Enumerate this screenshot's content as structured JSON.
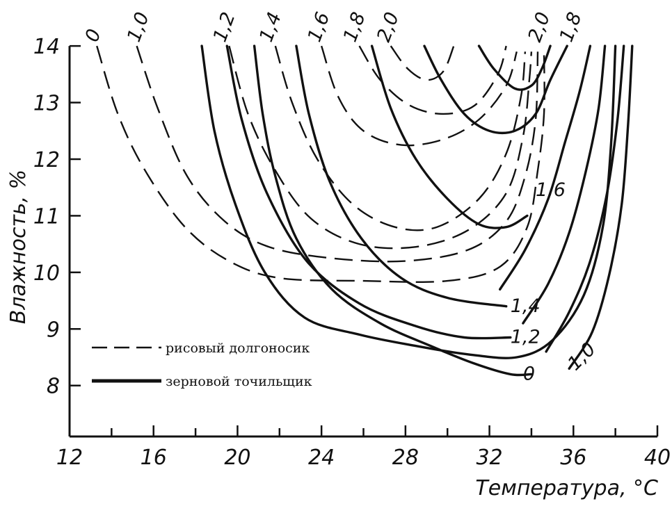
{
  "chart_data": {
    "type": "line",
    "title": "",
    "xlabel": "Температура, °С",
    "ylabel": "Влажность, %",
    "xlim": [
      12,
      40
    ],
    "ylim": [
      7.1,
      14.1
    ],
    "xticks": [
      "12",
      "16",
      "20",
      "24",
      "28",
      "32",
      "36",
      "40"
    ],
    "yticks": [
      "8",
      "9",
      "10",
      "11",
      "12",
      "13",
      "14"
    ],
    "legend": {
      "position": "bottom-left",
      "entries": [
        {
          "style": "dashed",
          "label": "рисовый долгоносик"
        },
        {
          "style": "solid",
          "label": "зерновой точильщик"
        }
      ]
    },
    "series": [
      {
        "group": "рисовый долгоносик",
        "style": "dashed",
        "label": "0",
        "points": [
          [
            13.3,
            14.0
          ],
          [
            14.3,
            12.8
          ],
          [
            15.6,
            11.8
          ],
          [
            17.5,
            10.8
          ],
          [
            19.6,
            10.2
          ],
          [
            22,
            9.9
          ],
          [
            26,
            9.85
          ],
          [
            30,
            9.85
          ],
          [
            32.5,
            10.1
          ],
          [
            33.8,
            10.8
          ],
          [
            34.3,
            11.8
          ],
          [
            34.6,
            12.8
          ],
          [
            34.6,
            13.9
          ]
        ]
      },
      {
        "group": "рисовый долгоносик",
        "style": "dashed",
        "label": "1,0",
        "points": [
          [
            15.2,
            14.0
          ],
          [
            16.2,
            12.9
          ],
          [
            17.6,
            11.7
          ],
          [
            19.4,
            10.9
          ],
          [
            21.5,
            10.45
          ],
          [
            24.5,
            10.25
          ],
          [
            28,
            10.2
          ],
          [
            31,
            10.4
          ],
          [
            32.8,
            10.9
          ],
          [
            33.7,
            11.7
          ],
          [
            34.2,
            12.7
          ],
          [
            34.3,
            13.9
          ]
        ]
      },
      {
        "group": "рисовый долгоносик",
        "style": "dashed",
        "label": "1,2",
        "points": [
          [
            19.6,
            14.0
          ],
          [
            20.5,
            12.8
          ],
          [
            21.8,
            11.8
          ],
          [
            23.5,
            10.95
          ],
          [
            25.8,
            10.5
          ],
          [
            28.5,
            10.45
          ],
          [
            31,
            10.75
          ],
          [
            32.8,
            11.4
          ],
          [
            33.6,
            12.4
          ],
          [
            33.9,
            13.4
          ],
          [
            34,
            13.9
          ]
        ]
      },
      {
        "group": "рисовый долгоносик",
        "style": "dashed",
        "label": "1,4",
        "points": [
          [
            21.8,
            14.0
          ],
          [
            22.6,
            13.0
          ],
          [
            23.8,
            12.0
          ],
          [
            25.5,
            11.2
          ],
          [
            27.5,
            10.8
          ],
          [
            29.5,
            10.8
          ],
          [
            31.5,
            11.3
          ],
          [
            32.8,
            12.1
          ],
          [
            33.5,
            13.1
          ],
          [
            33.7,
            13.9
          ]
        ]
      },
      {
        "group": "рисовый долгоносик",
        "style": "dashed",
        "label": "1,6",
        "points": [
          [
            24.0,
            14.0
          ],
          [
            24.8,
            13.1
          ],
          [
            26,
            12.5
          ],
          [
            27.8,
            12.25
          ],
          [
            29.8,
            12.35
          ],
          [
            31.5,
            12.7
          ],
          [
            32.8,
            13.3
          ],
          [
            33.3,
            13.9
          ]
        ]
      },
      {
        "group": "рисовый долгоносик",
        "style": "dashed",
        "label": "1,8",
        "points": [
          [
            25.8,
            14.0
          ],
          [
            26.8,
            13.4
          ],
          [
            28.2,
            12.95
          ],
          [
            29.8,
            12.8
          ],
          [
            31.3,
            12.95
          ],
          [
            32.4,
            13.5
          ],
          [
            32.8,
            14.0
          ]
        ]
      },
      {
        "group": "рисовый долгоносик",
        "style": "dashed",
        "label": "2,0",
        "points": [
          [
            27.3,
            14.0
          ],
          [
            28.1,
            13.6
          ],
          [
            29,
            13.4
          ],
          [
            29.8,
            13.55
          ],
          [
            30.3,
            14.0
          ]
        ]
      },
      {
        "group": "зерновой точильщик",
        "style": "solid",
        "label": "0",
        "points": [
          [
            20.8,
            14.0
          ],
          [
            21.2,
            12.8
          ],
          [
            21.8,
            11.7
          ],
          [
            22.8,
            10.6
          ],
          [
            24.5,
            9.7
          ],
          [
            26.8,
            9.1
          ],
          [
            29.2,
            8.7
          ],
          [
            31.2,
            8.4
          ],
          [
            33,
            8.2
          ],
          [
            34,
            8.2
          ]
        ]
      },
      {
        "group": "зерновой точильщик",
        "style": "solid",
        "label": "1,2",
        "points": [
          [
            19.5,
            14.0
          ],
          [
            20.2,
            12.7
          ],
          [
            21.4,
            11.4
          ],
          [
            23.3,
            10.2
          ],
          [
            25.8,
            9.45
          ],
          [
            28.5,
            9.05
          ],
          [
            30.8,
            8.85
          ],
          [
            33,
            8.85
          ]
        ]
      },
      {
        "group": "зерновой точильщик",
        "style": "solid",
        "label": "1,4",
        "points": [
          [
            22.8,
            14.0
          ],
          [
            23.4,
            12.8
          ],
          [
            24.4,
            11.6
          ],
          [
            25.9,
            10.6
          ],
          [
            27.8,
            9.9
          ],
          [
            30,
            9.55
          ],
          [
            32.8,
            9.4
          ]
        ]
      },
      {
        "group": "зерновой точильщик",
        "style": "solid",
        "label": "1,6",
        "points": [
          [
            26.4,
            14.0
          ],
          [
            27.3,
            12.9
          ],
          [
            28.5,
            12.0
          ],
          [
            30,
            11.3
          ],
          [
            31.5,
            10.85
          ],
          [
            32.8,
            10.8
          ],
          [
            33.8,
            11
          ]
        ]
      },
      {
        "group": "зерновой точильщик",
        "style": "solid",
        "label": "1,8",
        "points": [
          [
            28.9,
            14.0
          ],
          [
            29.7,
            13.4
          ],
          [
            30.8,
            12.8
          ],
          [
            32,
            12.5
          ],
          [
            33.2,
            12.5
          ],
          [
            34.2,
            12.8
          ],
          [
            34.9,
            13.4
          ],
          [
            35.7,
            14.0
          ]
        ]
      },
      {
        "group": "зерновой точильщик",
        "style": "solid",
        "label": "2,0",
        "points": [
          [
            31.5,
            14.0
          ],
          [
            32.2,
            13.6
          ],
          [
            33.2,
            13.25
          ],
          [
            34,
            13.3
          ],
          [
            34.5,
            13.6
          ],
          [
            34.9,
            14.0
          ]
        ]
      },
      {
        "group": "зерновой точильщик",
        "style": "solid",
        "label": "",
        "points": [
          [
            18.3,
            14.0
          ],
          [
            18.9,
            12.5
          ],
          [
            19.9,
            11.2
          ],
          [
            21.3,
            10.0
          ],
          [
            23.2,
            9.2
          ],
          [
            25.8,
            8.9
          ],
          [
            28.5,
            8.7
          ],
          [
            31,
            8.55
          ],
          [
            33.3,
            8.5
          ],
          [
            35,
            8.8
          ],
          [
            36.5,
            9.6
          ],
          [
            37.4,
            10.8
          ],
          [
            37.8,
            12.3
          ],
          [
            38,
            14.0
          ]
        ]
      },
      {
        "group": "зерновой точильщик",
        "style": "solid",
        "label": "1,0",
        "points": [
          [
            35.8,
            8.3
          ],
          [
            36.9,
            8.95
          ],
          [
            37.7,
            9.95
          ],
          [
            38.3,
            11.2
          ],
          [
            38.6,
            12.6
          ],
          [
            38.8,
            14.0
          ]
        ]
      },
      {
        "group": "зерновой точильщик",
        "style": "solid",
        "label": "",
        "points": [
          [
            34.7,
            8.6
          ],
          [
            35.8,
            9.3
          ],
          [
            36.8,
            10.2
          ],
          [
            37.6,
            11.4
          ],
          [
            38.1,
            12.7
          ],
          [
            38.4,
            14.0
          ]
        ]
      },
      {
        "group": "зерновой точильщик",
        "style": "solid",
        "label": "",
        "points": [
          [
            33.6,
            9.1
          ],
          [
            34.8,
            9.8
          ],
          [
            35.8,
            10.7
          ],
          [
            36.6,
            11.8
          ],
          [
            37.2,
            12.9
          ],
          [
            37.5,
            14.0
          ]
        ]
      },
      {
        "group": "зерновой точильщик",
        "style": "solid",
        "label": "",
        "points": [
          [
            32.5,
            9.7
          ],
          [
            33.7,
            10.4
          ],
          [
            34.8,
            11.3
          ],
          [
            35.6,
            12.3
          ],
          [
            36.3,
            13.2
          ],
          [
            36.8,
            14.0
          ]
        ]
      }
    ],
    "curve_labels": [
      {
        "text": "0",
        "x": 13.3,
        "y": 14.05,
        "rot": -70,
        "anchor": "start"
      },
      {
        "text": "1,0",
        "x": 15.3,
        "y": 14.05,
        "rot": -70,
        "anchor": "start"
      },
      {
        "text": "1,2",
        "x": 19.4,
        "y": 14.05,
        "rot": -70,
        "anchor": "start"
      },
      {
        "text": "1,4",
        "x": 21.6,
        "y": 14.05,
        "rot": -70,
        "anchor": "start"
      },
      {
        "text": "1,6",
        "x": 23.9,
        "y": 14.05,
        "rot": -70,
        "anchor": "start"
      },
      {
        "text": "1,8",
        "x": 25.6,
        "y": 14.05,
        "rot": -70,
        "anchor": "start"
      },
      {
        "text": "2,0",
        "x": 27.2,
        "y": 14.05,
        "rot": -70,
        "anchor": "start"
      },
      {
        "text": "2,0",
        "x": 34.4,
        "y": 14.05,
        "rot": -70,
        "anchor": "start"
      },
      {
        "text": "1,8",
        "x": 35.9,
        "y": 14.05,
        "rot": -70,
        "anchor": "start"
      },
      {
        "text": "1,6",
        "x": 34.2,
        "y": 11.35,
        "rot": 0,
        "anchor": "start"
      },
      {
        "text": "1,4",
        "x": 33.0,
        "y": 9.3,
        "rot": 0,
        "anchor": "start"
      },
      {
        "text": "1,2",
        "x": 33.0,
        "y": 8.75,
        "rot": 0,
        "anchor": "start"
      },
      {
        "text": "0",
        "x": 33.6,
        "y": 8.1,
        "rot": 0,
        "anchor": "start"
      },
      {
        "text": "1,0",
        "x": 36.1,
        "y": 8.25,
        "rot": -45,
        "anchor": "start"
      }
    ],
    "grid": false
  }
}
